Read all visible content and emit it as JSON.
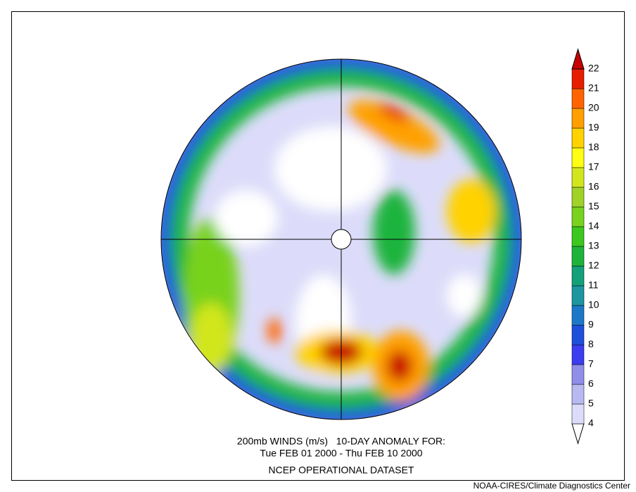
{
  "title_lines": [
    "200mb WINDS (m/s)   10-DAY ANOMALY FOR:",
    "Tue FEB 01 2000 - Thu FEB 10 2000",
    "NCEP OPERATIONAL DATASET"
  ],
  "credit": "NOAA-CIRES/Climate Diagnostics Center",
  "colorbar": {
    "levels": [
      4,
      5,
      6,
      7,
      8,
      9,
      10,
      11,
      12,
      13,
      14,
      15,
      16,
      17,
      18,
      19,
      20,
      21,
      22
    ],
    "colors": [
      "#ffffff",
      "#dcdcfa",
      "#b9b9f2",
      "#8f8fea",
      "#3c3cf0",
      "#1e50dc",
      "#1e78c8",
      "#1e96a0",
      "#14a078",
      "#1eb43c",
      "#3cc81e",
      "#78d21e",
      "#a0d228",
      "#d2e61e",
      "#ffff14",
      "#ffd200",
      "#ffa000",
      "#ff6400",
      "#e61e00",
      "#c80000"
    ]
  }
}
